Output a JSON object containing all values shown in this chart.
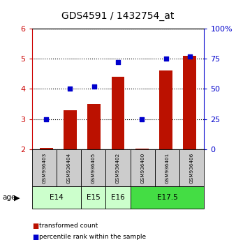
{
  "title": "GDS4591 / 1432754_at",
  "samples": [
    "GSM936403",
    "GSM936404",
    "GSM936405",
    "GSM936402",
    "GSM936400",
    "GSM936401",
    "GSM936406"
  ],
  "bar_values": [
    2.05,
    3.3,
    3.5,
    4.4,
    2.02,
    4.6,
    5.1
  ],
  "percentile_values": [
    25,
    50,
    52,
    72,
    25,
    75,
    77
  ],
  "bar_bottom": 2.0,
  "ylim_left": [
    2.0,
    6.0
  ],
  "ylim_right": [
    0,
    100
  ],
  "yticks_left": [
    2,
    3,
    4,
    5,
    6
  ],
  "yticks_right": [
    0,
    25,
    50,
    75,
    100
  ],
  "ylabel_left_color": "#cc0000",
  "ylabel_right_color": "#0000cc",
  "bar_color": "#bb1100",
  "dot_color": "#0000cc",
  "age_groups": [
    {
      "label": "E14",
      "span": 2,
      "color": "#ccffcc"
    },
    {
      "label": "E15",
      "span": 1,
      "color": "#ccffcc"
    },
    {
      "label": "E16",
      "span": 1,
      "color": "#ccffcc"
    },
    {
      "label": "E17.5",
      "span": 3,
      "color": "#44dd44"
    }
  ],
  "background_color": "white",
  "sample_box_color": "#cccccc",
  "legend_items": [
    {
      "label": "transformed count",
      "color": "#bb1100"
    },
    {
      "label": "percentile rank within the sample",
      "color": "#0000cc"
    }
  ]
}
